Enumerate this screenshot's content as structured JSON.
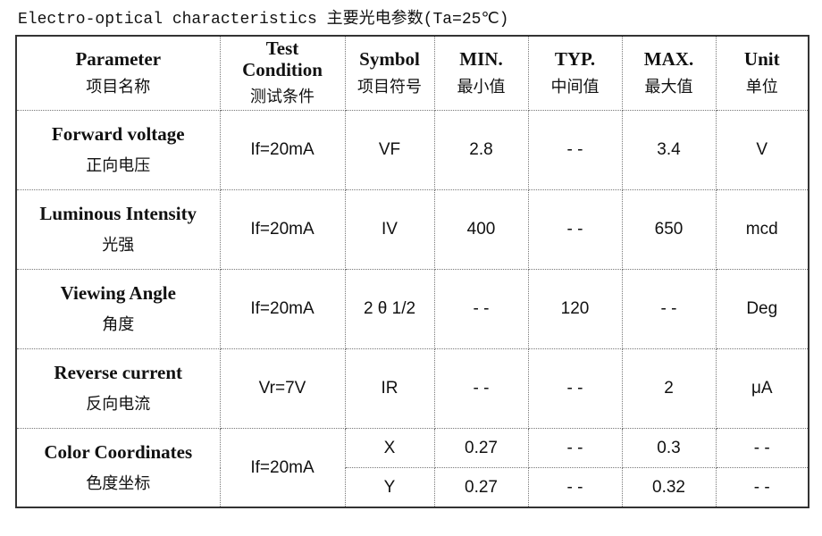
{
  "title": "Electro-optical characteristics 主要光电参数(Ta=25℃)",
  "table": {
    "header": [
      {
        "en": "Parameter",
        "zh": "项目名称"
      },
      {
        "en": "Test Condition",
        "zh": "测试条件"
      },
      {
        "en": "Symbol",
        "zh": "项目符号"
      },
      {
        "en": "MIN.",
        "zh": "最小值"
      },
      {
        "en": "TYP.",
        "zh": "中间值"
      },
      {
        "en": "MAX.",
        "zh": "最大值"
      },
      {
        "en": "Unit",
        "zh": "单位"
      }
    ],
    "rows": [
      {
        "parameter": {
          "en": "Forward voltage",
          "zh": "正向电压"
        },
        "condition": "If=20mA",
        "cells": [
          [
            "VF",
            "2.8",
            "- -",
            "3.4",
            "V"
          ]
        ]
      },
      {
        "parameter": {
          "en": "Luminous Intensity",
          "zh": "光强"
        },
        "condition": "If=20mA",
        "cells": [
          [
            "IV",
            "400",
            "- -",
            "650",
            "mcd"
          ]
        ]
      },
      {
        "parameter": {
          "en": "Viewing Angle",
          "zh": "角度"
        },
        "condition": "If=20mA",
        "cells": [
          [
            "2 θ 1/2",
            "- -",
            "120",
            "- -",
            "Deg"
          ]
        ]
      },
      {
        "parameter": {
          "en": "Reverse current",
          "zh": "反向电流"
        },
        "condition": "Vr=7V",
        "cells": [
          [
            "IR",
            "- -",
            "- -",
            "2",
            "μA"
          ]
        ]
      },
      {
        "parameter": {
          "en": "Color Coordinates",
          "zh": "色度坐标"
        },
        "condition": "If=20mA",
        "cells": [
          [
            "X",
            "0.27",
            "- -",
            "0.3",
            "- -"
          ],
          [
            "Y",
            "0.27",
            "- -",
            "0.32",
            "- -"
          ]
        ]
      }
    ]
  }
}
